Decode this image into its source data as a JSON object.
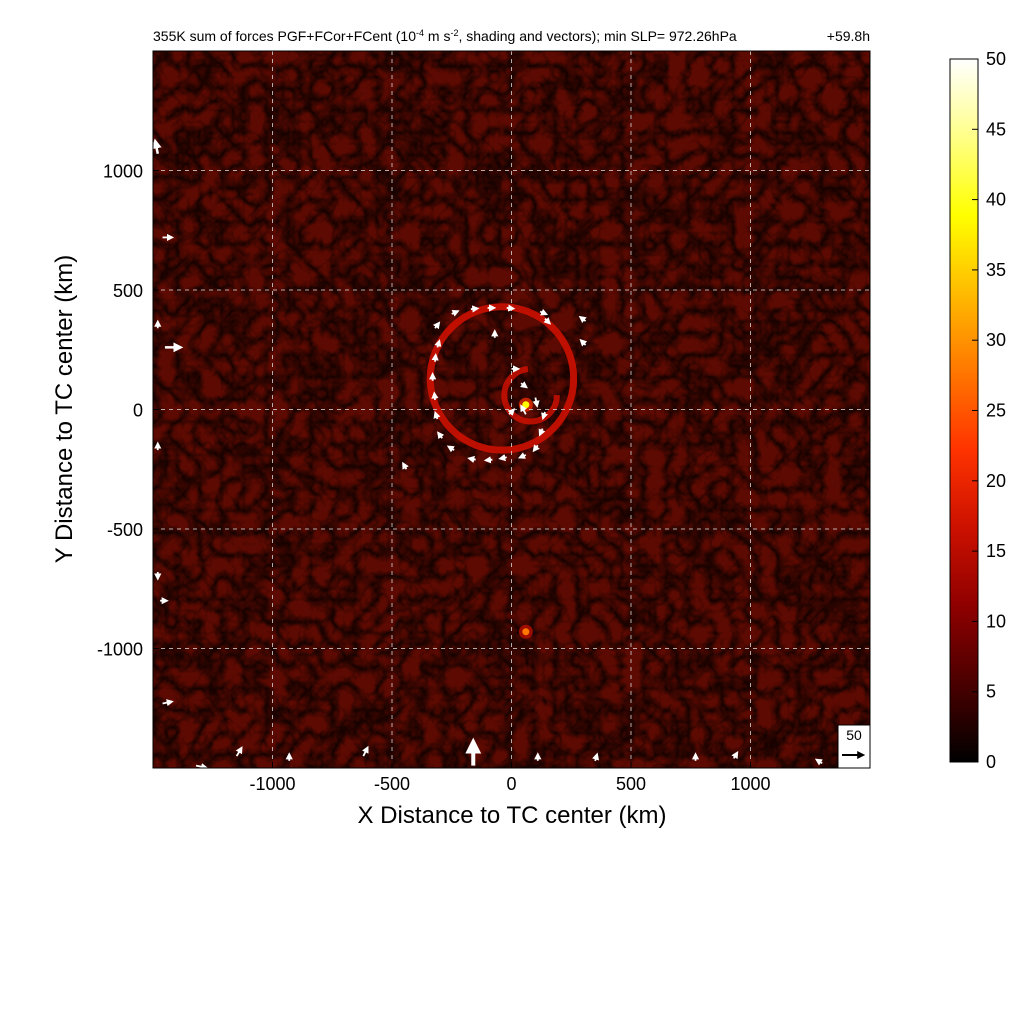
{
  "chart_data": {
    "type": "heatmap",
    "title": "355K sum of forces PGF+FCor+FCent (10",
    "title_exp": "-4",
    "title_mid": " m s",
    "title_exp2": "-2",
    "title_tail": ", shading and vectors); min SLP= 972.26hPa",
    "time_label": "+59.8h",
    "xlabel": "X Distance to TC center (km)",
    "ylabel": "Y Distance to TC center (km)",
    "xlim": [
      -1500,
      1500
    ],
    "ylim": [
      -1500,
      1500
    ],
    "x_ticks": [
      -1000,
      -500,
      0,
      500,
      1000
    ],
    "y_ticks": [
      1000,
      500,
      0,
      -500,
      -1000
    ],
    "x_tick_labels": [
      "-1000",
      "-500",
      "0",
      "500",
      "1000"
    ],
    "y_tick_labels": [
      "1000",
      "500",
      "0",
      "-500",
      "-1000"
    ],
    "grid": true,
    "colorbar": {
      "min": 0,
      "max": 50,
      "ticks": [
        0,
        5,
        10,
        15,
        20,
        25,
        30,
        35,
        40,
        45,
        50
      ],
      "tick_labels": [
        "0",
        "5",
        "10",
        "15",
        "20",
        "25",
        "30",
        "35",
        "40",
        "45",
        "50"
      ],
      "colormap": [
        "#000000",
        "#4a0000",
        "#8f0000",
        "#cc1100",
        "#ff3300",
        "#ff7700",
        "#ffbb00",
        "#ffff00",
        "#ffff88",
        "#ffffff"
      ]
    },
    "background_value": 4,
    "hot_spots": [
      {
        "x": 60,
        "y": 20,
        "value": 40
      },
      {
        "x": 60,
        "y": -930,
        "value": 25
      }
    ],
    "ring": {
      "center_x": -40,
      "center_y": 130,
      "radius": 300,
      "value": 14
    },
    "spiral_arm": {
      "center_x": 80,
      "center_y": 60,
      "radius": 110,
      "value": 18
    },
    "reference_vector": {
      "label": "50",
      "magnitude": 50
    },
    "vectors": [
      {
        "x": -320,
        "y": 340,
        "u": 0.6,
        "v": 0.8,
        "mag": 12
      },
      {
        "x": -250,
        "y": 400,
        "u": 0.9,
        "v": 0.4,
        "mag": 12
      },
      {
        "x": -170,
        "y": 420,
        "u": 1.0,
        "v": 0.1,
        "mag": 12
      },
      {
        "x": -100,
        "y": 425,
        "u": 1.0,
        "v": 0.0,
        "mag": 12
      },
      {
        "x": -20,
        "y": 425,
        "u": 1.0,
        "v": -0.1,
        "mag": 12
      },
      {
        "x": 120,
        "y": 410,
        "u": 0.9,
        "v": -0.4,
        "mag": 12
      },
      {
        "x": 140,
        "y": 380,
        "u": 0.7,
        "v": -0.7,
        "mag": 12
      },
      {
        "x": -70,
        "y": 300,
        "u": 0.0,
        "v": 1.0,
        "mag": 12
      },
      {
        "x": -310,
        "y": 260,
        "u": 0.3,
        "v": 1.0,
        "mag": 12
      },
      {
        "x": -320,
        "y": 200,
        "u": 0.1,
        "v": 1.0,
        "mag": 12
      },
      {
        "x": -330,
        "y": 120,
        "u": 0.0,
        "v": 1.0,
        "mag": 12
      },
      {
        "x": -320,
        "y": 40,
        "u": -0.1,
        "v": 1.0,
        "mag": 12
      },
      {
        "x": -310,
        "y": -40,
        "u": -0.3,
        "v": 0.9,
        "mag": 12
      },
      {
        "x": -290,
        "y": -120,
        "u": -0.6,
        "v": 0.8,
        "mag": 12
      },
      {
        "x": -240,
        "y": -170,
        "u": -0.8,
        "v": 0.5,
        "mag": 12
      },
      {
        "x": -150,
        "y": -210,
        "u": -1.0,
        "v": 0.2,
        "mag": 12
      },
      {
        "x": -80,
        "y": -210,
        "u": -1.0,
        "v": -0.1,
        "mag": 12
      },
      {
        "x": -20,
        "y": -200,
        "u": -1.0,
        "v": -0.2,
        "mag": 12
      },
      {
        "x": 60,
        "y": -190,
        "u": -0.9,
        "v": -0.4,
        "mag": 12
      },
      {
        "x": 110,
        "y": -150,
        "u": -0.6,
        "v": -0.8,
        "mag": 12
      },
      {
        "x": 130,
        "y": -80,
        "u": -0.4,
        "v": -0.9,
        "mag": 12
      },
      {
        "x": 140,
        "y": -10,
        "u": -0.3,
        "v": -1.0,
        "mag": 12
      },
      {
        "x": 100,
        "y": 50,
        "u": 0.2,
        "v": -1.0,
        "mag": 16
      },
      {
        "x": 40,
        "y": 110,
        "u": 0.8,
        "v": -0.6,
        "mag": 12
      },
      {
        "x": 0,
        "y": 170,
        "u": 1.0,
        "v": 0.0,
        "mag": 12
      },
      {
        "x": -10,
        "y": -20,
        "u": 0.7,
        "v": 0.7,
        "mag": 12
      },
      {
        "x": 60,
        "y": -20,
        "u": -0.5,
        "v": 0.9,
        "mag": 18
      },
      {
        "x": 310,
        "y": 370,
        "u": -0.8,
        "v": 0.6,
        "mag": 12
      },
      {
        "x": 310,
        "y": 270,
        "u": -0.7,
        "v": 0.7,
        "mag": 12
      },
      {
        "x": -440,
        "y": -250,
        "u": -0.5,
        "v": 0.9,
        "mag": 12
      },
      {
        "x": -1480,
        "y": 1070,
        "u": -0.2,
        "v": 1.0,
        "mag": 24
      },
      {
        "x": -1460,
        "y": 720,
        "u": 1.0,
        "v": 0.0,
        "mag": 18
      },
      {
        "x": -1450,
        "y": 260,
        "u": 1.0,
        "v": 0.0,
        "mag": 30
      },
      {
        "x": -1480,
        "y": 340,
        "u": 0.0,
        "v": 1.0,
        "mag": 12
      },
      {
        "x": -1480,
        "y": -170,
        "u": 0.0,
        "v": 1.0,
        "mag": 12
      },
      {
        "x": -1480,
        "y": -680,
        "u": 0.0,
        "v": -1.0,
        "mag": 12
      },
      {
        "x": -1470,
        "y": -800,
        "u": 1.0,
        "v": 0.0,
        "mag": 12
      },
      {
        "x": -1460,
        "y": -1230,
        "u": 1.0,
        "v": 0.2,
        "mag": 18
      },
      {
        "x": -1320,
        "y": -1490,
        "u": 1.0,
        "v": -0.2,
        "mag": 20
      },
      {
        "x": -1150,
        "y": -1450,
        "u": 0.6,
        "v": 1.0,
        "mag": 18
      },
      {
        "x": -930,
        "y": -1470,
        "u": 0.0,
        "v": 1.0,
        "mag": 12
      },
      {
        "x": -620,
        "y": -1450,
        "u": 0.5,
        "v": 1.0,
        "mag": 18
      },
      {
        "x": -160,
        "y": -1490,
        "u": 0.0,
        "v": 1.0,
        "mag": 45
      },
      {
        "x": 110,
        "y": -1470,
        "u": 0.0,
        "v": 1.0,
        "mag": 12
      },
      {
        "x": 350,
        "y": -1470,
        "u": 0.3,
        "v": 1.0,
        "mag": 12
      },
      {
        "x": 770,
        "y": -1470,
        "u": 0.0,
        "v": 1.0,
        "mag": 12
      },
      {
        "x": 930,
        "y": -1460,
        "u": 0.6,
        "v": 1.0,
        "mag": 12
      },
      {
        "x": 1300,
        "y": -1480,
        "u": -0.8,
        "v": 0.5,
        "mag": 12
      }
    ]
  }
}
